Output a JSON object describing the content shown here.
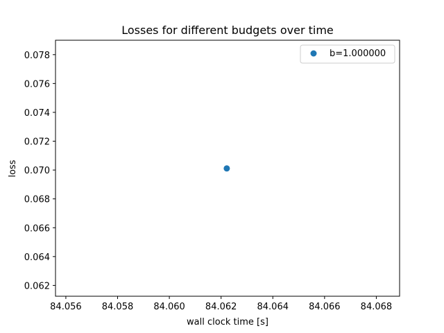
{
  "chart_data": {
    "type": "scatter",
    "title": "Losses for different budgets over time",
    "xlabel": "wall clock time [s]",
    "ylabel": "loss",
    "xlim": [
      84.0556,
      84.0689
    ],
    "ylim": [
      0.06125,
      0.079
    ],
    "xticks": [
      "84.056",
      "84.058",
      "84.060",
      "84.062",
      "84.064",
      "84.066",
      "84.068"
    ],
    "xtick_values": [
      84.056,
      84.058,
      84.06,
      84.062,
      84.064,
      84.066,
      84.068
    ],
    "yticks": [
      "0.062",
      "0.064",
      "0.066",
      "0.068",
      "0.070",
      "0.072",
      "0.074",
      "0.076",
      "0.078"
    ],
    "ytick_values": [
      0.062,
      0.064,
      0.066,
      0.068,
      0.07,
      0.072,
      0.074,
      0.076,
      0.078
    ],
    "grid": false,
    "legend_position": "top-right",
    "series": [
      {
        "name": "b=1.000000",
        "color": "#1f77b4",
        "points": [
          {
            "x": 84.06222,
            "y": 0.07011
          }
        ]
      }
    ]
  }
}
